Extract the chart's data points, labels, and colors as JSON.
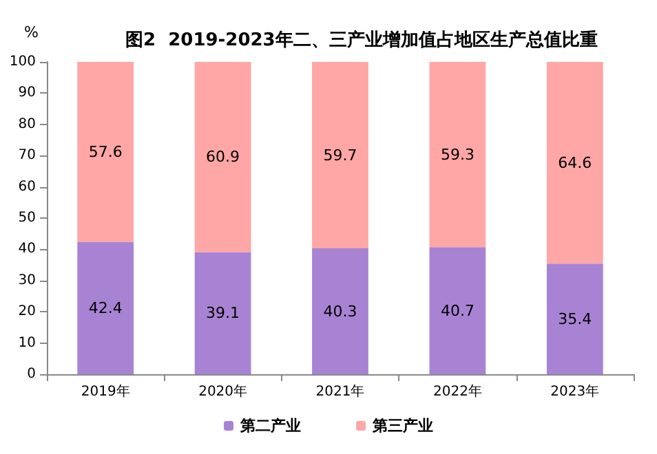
{
  "chart_data": {
    "type": "bar",
    "title": "图2  2019-2023年二、三产业增加值占地区生产总值比重",
    "ylabel": "%",
    "categories": [
      "2019年",
      "2020年",
      "2021年",
      "2022年",
      "2023年"
    ],
    "series": [
      {
        "name": "第二产业",
        "color": "#a883d3",
        "values": [
          42.4,
          39.1,
          40.3,
          40.7,
          35.4
        ]
      },
      {
        "name": "第三产业",
        "color": "#ffa6a6",
        "values": [
          57.6,
          60.9,
          59.7,
          59.3,
          64.6
        ]
      }
    ],
    "stacked": true,
    "data_labels": true,
    "ylim": [
      0,
      100
    ],
    "yticks": [
      0,
      10,
      20,
      30,
      40,
      50,
      60,
      70,
      80,
      90,
      100
    ],
    "grid": false,
    "legend": "bottom"
  }
}
